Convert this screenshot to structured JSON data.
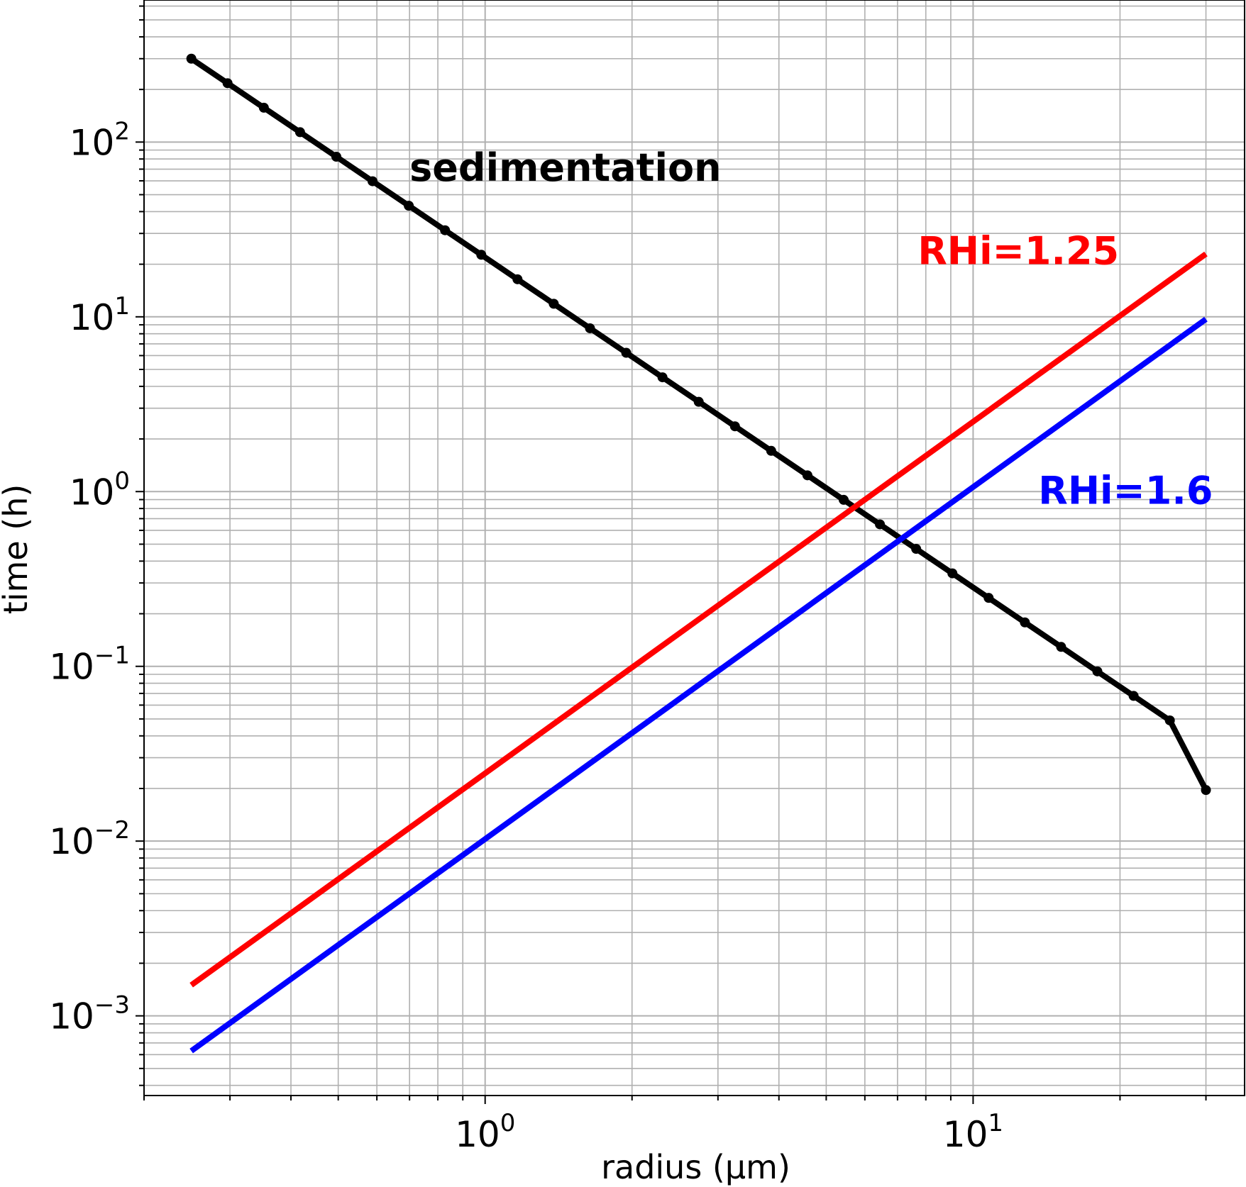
{
  "chart_data": {
    "type": "line",
    "xlabel": "radius (µm)",
    "ylabel": "time (h)",
    "x_scale": "log",
    "y_scale": "log",
    "xlim": [
      0.2,
      36
    ],
    "ylim": [
      0.00035,
      650
    ],
    "grid": true,
    "x_ticks": [
      {
        "value": 1,
        "base": "10",
        "exp": "0"
      },
      {
        "value": 10,
        "base": "10",
        "exp": "1"
      }
    ],
    "y_ticks": [
      {
        "value": 0.001,
        "base": "10",
        "exp": "−3"
      },
      {
        "value": 0.01,
        "base": "10",
        "exp": "−2"
      },
      {
        "value": 0.1,
        "base": "10",
        "exp": "−1"
      },
      {
        "value": 1,
        "base": "10",
        "exp": "0"
      },
      {
        "value": 10,
        "base": "10",
        "exp": "1"
      },
      {
        "value": 100,
        "base": "10",
        "exp": "2"
      }
    ],
    "series": [
      {
        "label": "sedimentation",
        "color": "#000000",
        "markers": true,
        "x": [
          0.25,
          0.2966,
          0.352,
          0.4176,
          0.4955,
          0.5879,
          0.6975,
          0.8276,
          0.982,
          1.165,
          1.3824,
          1.6402,
          1.9461,
          2.3091,
          2.7397,
          3.2506,
          3.8568,
          4.5761,
          5.4295,
          6.4421,
          7.6436,
          9.069,
          10.76,
          12.767,
          15.148,
          17.973,
          21.325,
          25.302,
          30.0
        ],
        "y": [
          300,
          217.2,
          157.3,
          113.9,
          82.45,
          59.69,
          43.22,
          31.29,
          22.65,
          16.4,
          11.88,
          8.6,
          6.226,
          4.508,
          3.264,
          2.363,
          1.711,
          1.239,
          0.8969,
          0.6494,
          0.4701,
          0.3404,
          0.2465,
          0.1784,
          0.1292,
          0.09355,
          0.06773,
          0.04904,
          0.0196
        ]
      },
      {
        "label": "RHi=1.25",
        "color": "#ff0000",
        "markers": false,
        "x": [
          0.25,
          30.0
        ],
        "y": [
          0.0015,
          22.9
        ]
      },
      {
        "label": "RHi=1.6",
        "color": "#0000ff",
        "markers": false,
        "x": [
          0.25,
          30.0
        ],
        "y": [
          0.00063,
          9.7
        ]
      }
    ],
    "annotations": [
      {
        "text": "sedimentation",
        "color": "#000000",
        "x": 0.7,
        "y": 60
      },
      {
        "text": "RHi=1.25",
        "color": "#ff0000",
        "x": 7.7,
        "y": 20
      },
      {
        "text": "RHi=1.6",
        "color": "#0000ff",
        "x": 13.6,
        "y": 0.85
      }
    ]
  }
}
